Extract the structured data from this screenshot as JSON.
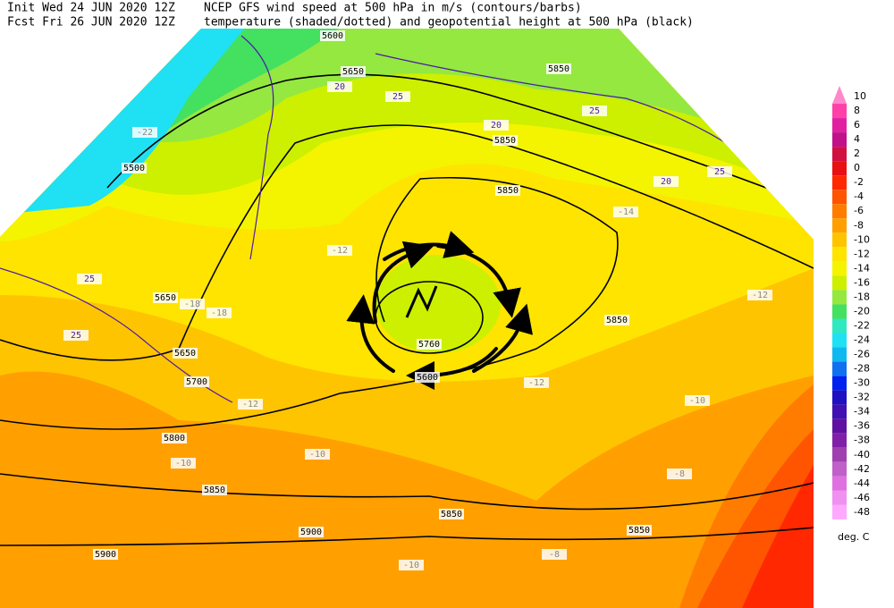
{
  "header": {
    "init_line": "Init  Wed 24 JUN 2020 12Z",
    "fcst_line": "Fcst Fri 26 JUN 2020 12Z",
    "title_line1": "NCEP GFS wind speed at 500 hPa in m/s (contours/barbs)",
    "title_line2": "temperature (shaded/dotted) and geopotential height at 500 hPa (black)"
  },
  "colorbar": {
    "ticks": [
      10,
      8,
      6,
      4,
      2,
      0,
      -2,
      -4,
      -6,
      -8,
      -10,
      -12,
      -14,
      -16,
      -18,
      -20,
      -22,
      -24,
      -26,
      -28,
      -30,
      -32,
      -34,
      -36,
      -38,
      -40,
      -42,
      -44,
      -46,
      -48
    ],
    "colors": [
      "#ff88cc",
      "#ff40a8",
      "#e020a0",
      "#c0108a",
      "#d01040",
      "#e81010",
      "#ff2800",
      "#ff5400",
      "#ff7c00",
      "#ffa000",
      "#ffc400",
      "#ffe400",
      "#f4f400",
      "#ccf000",
      "#94e840",
      "#44e060",
      "#30e8c0",
      "#20e0f4",
      "#10b8f0",
      "#1070f0",
      "#0020f0",
      "#2010c0",
      "#4010b0",
      "#6010a0",
      "#8020a8",
      "#a040b0",
      "#c060c8",
      "#e070e0",
      "#f090f0",
      "#ffa8ff"
    ],
    "unit": "deg. C"
  },
  "map": {
    "height_labels": [
      5500,
      5650,
      5800,
      5850,
      5900,
      5900,
      5850,
      5850,
      5850,
      5850,
      5850,
      5760,
      5600,
      5700,
      5650,
      5650,
      5600,
      5850
    ],
    "temperature_labels": [
      -12,
      -12,
      -12,
      -14,
      -10,
      -10,
      -10,
      -10,
      -8,
      -8,
      -12,
      -22,
      -18,
      -18
    ],
    "wind_labels": [
      20,
      25,
      25,
      20,
      20,
      25,
      25,
      25
    ]
  }
}
